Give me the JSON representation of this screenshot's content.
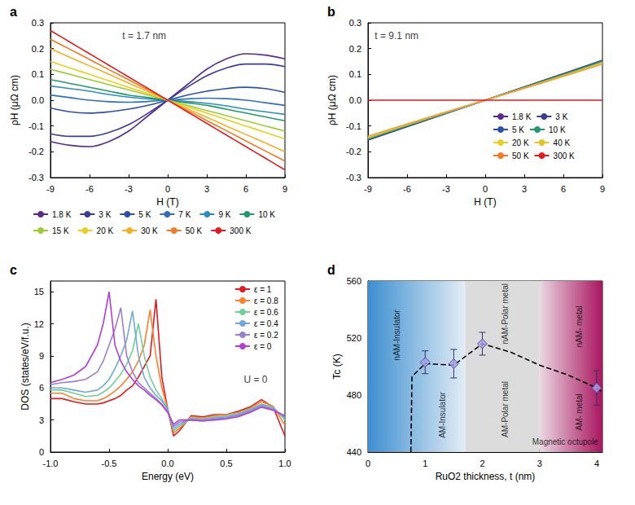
{
  "chart_data": [
    {
      "type": "line",
      "panel_label": "a",
      "xlabel": "H (T)",
      "ylabel": "ρH (μΩ cm)",
      "xlim": [
        -9,
        9
      ],
      "xticks": [
        -9,
        -6,
        -3,
        0,
        3,
        6,
        9
      ],
      "ylim": [
        -0.3,
        0.3
      ],
      "yticks": [
        -0.3,
        -0.2,
        -0.1,
        {
          "value": 0,
          "label": "0.0"
        },
        0.1,
        0.2,
        0.3
      ],
      "grid": false,
      "legend": "bottom",
      "marker": "none",
      "annotations": [
        {
          "text": "t = 1.7 nm",
          "x": -1.8,
          "y": 0.25
        }
      ],
      "x": [
        -9,
        -7.5,
        -6,
        -4.5,
        -3,
        -1.5,
        0,
        1.5,
        3,
        4.5,
        6,
        7.5,
        9
      ],
      "series": [
        {
          "name": "1.8 K",
          "color": "#5a2a8c",
          "values": [
            -0.16,
            -0.175,
            -0.18,
            -0.16,
            -0.12,
            -0.06,
            0,
            0.06,
            0.12,
            0.16,
            0.18,
            0.175,
            0.16
          ]
        },
        {
          "name": "3 K",
          "color": "#3b3b9a",
          "values": [
            -0.13,
            -0.14,
            -0.14,
            -0.125,
            -0.095,
            -0.05,
            0,
            0.05,
            0.095,
            0.125,
            0.14,
            0.14,
            0.13
          ]
        },
        {
          "name": "5 K",
          "color": "#2c4fa8",
          "values": [
            -0.03,
            -0.045,
            -0.05,
            -0.045,
            -0.035,
            -0.02,
            0,
            0.02,
            0.035,
            0.045,
            0.05,
            0.045,
            0.03
          ]
        },
        {
          "name": "7 K",
          "color": "#2f6fc0",
          "values": [
            0.02,
            0.01,
            0,
            -0.006,
            -0.008,
            -0.005,
            0,
            0.005,
            0.008,
            0.006,
            0,
            -0.01,
            -0.02
          ]
        },
        {
          "name": "9 K",
          "color": "#2a8fbf",
          "values": [
            0.055,
            0.045,
            0.035,
            0.022,
            0.012,
            0.005,
            0,
            -0.005,
            -0.012,
            -0.022,
            -0.035,
            -0.045,
            -0.055
          ]
        },
        {
          "name": "10 K",
          "color": "#1e9a6a",
          "values": [
            0.08,
            0.065,
            0.05,
            0.035,
            0.02,
            0.01,
            0,
            -0.01,
            -0.02,
            -0.035,
            -0.05,
            -0.065,
            -0.08
          ]
        },
        {
          "name": "15 K",
          "color": "#9acd32",
          "values": [
            0.12,
            0.1,
            0.08,
            0.06,
            0.04,
            0.02,
            0,
            -0.02,
            -0.04,
            -0.06,
            -0.08,
            -0.1,
            -0.12
          ]
        },
        {
          "name": "20 K",
          "color": "#e8d020",
          "values": [
            0.15,
            0.125,
            0.1,
            0.075,
            0.05,
            0.025,
            0,
            -0.025,
            -0.05,
            -0.075,
            -0.1,
            -0.125,
            -0.15
          ]
        },
        {
          "name": "30 K",
          "color": "#f5b021",
          "values": [
            0.2,
            0.166,
            0.133,
            0.1,
            0.066,
            0.033,
            0,
            -0.033,
            -0.066,
            -0.1,
            -0.133,
            -0.166,
            -0.2
          ]
        },
        {
          "name": "50 K",
          "color": "#f27a25",
          "values": [
            0.236,
            0.197,
            0.158,
            0.118,
            0.079,
            0.039,
            0,
            -0.039,
            -0.079,
            -0.118,
            -0.158,
            -0.197,
            -0.236
          ]
        },
        {
          "name": "300 K",
          "color": "#e41a1c",
          "values": [
            0.27,
            0.225,
            0.18,
            0.135,
            0.09,
            0.045,
            0,
            -0.045,
            -0.09,
            -0.135,
            -0.18,
            -0.225,
            -0.27
          ]
        }
      ]
    },
    {
      "type": "line",
      "panel_label": "b",
      "xlabel": "H (T)",
      "ylabel": "ρH (μΩ cm)",
      "xlim": [
        -9,
        9
      ],
      "xticks": [
        -9,
        -6,
        -3,
        0,
        3,
        6,
        9
      ],
      "ylim": [
        -0.3,
        0.3
      ],
      "yticks": [
        -0.3,
        -0.2,
        -0.1,
        {
          "value": 0,
          "label": "0.0"
        },
        0.1,
        0.2,
        0.3
      ],
      "grid": false,
      "legend": "lower right",
      "marker": "none",
      "annotations": [
        {
          "text": "t = 9.1 nm",
          "x": -6.8,
          "y": 0.25
        }
      ],
      "x": [
        -9,
        -4.5,
        0,
        4.5,
        9
      ],
      "series": [
        {
          "name": "1.8 K",
          "color": "#4b2a8a",
          "values": [
            -0.155,
            -0.077,
            0,
            0.077,
            0.155
          ]
        },
        {
          "name": "3 K",
          "color": "#1f3f8f",
          "values": [
            -0.153,
            -0.076,
            0,
            0.076,
            0.153
          ]
        },
        {
          "name": "5 K",
          "color": "#2f5fb3",
          "values": [
            -0.152,
            -0.075,
            0,
            0.075,
            0.152
          ]
        },
        {
          "name": "10 K",
          "color": "#1f8f8f",
          "values": [
            -0.15,
            -0.074,
            0,
            0.074,
            0.15
          ]
        },
        {
          "name": "20 K",
          "color": "#4caf50",
          "values": [
            -0.148,
            -0.073,
            0,
            0.073,
            0.148
          ]
        },
        {
          "name": "40 K",
          "color": "#e6c229",
          "values": [
            -0.145,
            -0.071,
            0,
            0.071,
            0.145
          ]
        },
        {
          "name": "50 K",
          "color": "#f39c34",
          "values": [
            -0.14,
            -0.069,
            0,
            0.069,
            0.14
          ]
        },
        {
          "name": "300 K",
          "color": "#e41a1c",
          "values": [
            0,
            0,
            0,
            0,
            0
          ]
        }
      ]
    },
    {
      "type": "line",
      "panel_label": "c",
      "xlabel": "Energy (eV)",
      "ylabel": "DOS (states/eV/f.u.)",
      "xlim": [
        -1,
        1
      ],
      "xticks": [
        {
          "value": -1,
          "label": "-1.0"
        },
        -0.5,
        {
          "value": 0,
          "label": "0.0"
        },
        0.5,
        {
          "value": 1,
          "label": "1.0"
        }
      ],
      "ylim": [
        0,
        16
      ],
      "yticks": [
        0,
        3,
        6,
        9,
        12,
        15
      ],
      "grid": false,
      "legend": "upper right",
      "marker": "none",
      "annotations": [
        {
          "text": "U = 0",
          "x": 0.75,
          "y": 6.8
        }
      ],
      "x": [
        -1,
        -0.9,
        -0.8,
        -0.7,
        -0.6,
        -0.55,
        -0.5,
        -0.45,
        -0.4,
        -0.35,
        -0.3,
        -0.25,
        -0.2,
        -0.15,
        -0.1,
        -0.05,
        0,
        0.05,
        0.1,
        0.2,
        0.3,
        0.4,
        0.5,
        0.6,
        0.7,
        0.8,
        0.9,
        1
      ],
      "series": [
        {
          "name": "ε = 1",
          "color": "#e31a1c",
          "values": [
            5,
            5,
            4.7,
            4.5,
            4.5,
            4.6,
            4.8,
            5,
            5.3,
            5.8,
            6.2,
            7,
            8,
            9,
            14.3,
            7,
            4,
            1.5,
            2,
            3.4,
            3.3,
            3.5,
            3.5,
            3.8,
            4.2,
            4.9,
            4.2,
            1.5
          ]
        },
        {
          "name": "ε = 0.8",
          "color": "#ff7f2a",
          "values": [
            5.5,
            5.5,
            5,
            4.8,
            4.8,
            5,
            5.3,
            5.7,
            6.2,
            6.8,
            7.5,
            8.5,
            10,
            13.3,
            9,
            6,
            4,
            1.8,
            2.2,
            3.3,
            3.2,
            3.4,
            3.5,
            3.7,
            4.1,
            4.7,
            4.3,
            2.5
          ]
        },
        {
          "name": "ε = 0.6",
          "color": "#6fd09a",
          "values": [
            5.8,
            5.8,
            5.5,
            5.2,
            5.3,
            5.6,
            6,
            6.6,
            7.3,
            8.2,
            9.5,
            12,
            9,
            7,
            5.8,
            5,
            4,
            2,
            2.4,
            3.2,
            3.1,
            3.3,
            3.4,
            3.6,
            4,
            4.5,
            4.2,
            3
          ]
        },
        {
          "name": "ε = 0.4",
          "color": "#6fa8dc",
          "values": [
            6,
            6,
            5.8,
            5.6,
            5.8,
            6.2,
            6.8,
            7.8,
            9,
            10.5,
            13.2,
            9,
            7,
            6,
            5.3,
            4.8,
            4,
            2.2,
            2.6,
            3.1,
            3,
            3.2,
            3.3,
            3.5,
            3.9,
            4.4,
            4.1,
            3.2
          ]
        },
        {
          "name": "ε = 0.2",
          "color": "#9a7fd1",
          "values": [
            6.3,
            6.5,
            6.6,
            6.8,
            7.5,
            8.5,
            10,
            11.5,
            13.5,
            9,
            7.5,
            6.5,
            6,
            5.5,
            5,
            4.5,
            3.8,
            2.4,
            2.8,
            3,
            3,
            3.1,
            3.2,
            3.4,
            3.8,
            4.3,
            4,
            3.3
          ]
        },
        {
          "name": "ε = 0",
          "color": "#b13fd6",
          "values": [
            6.5,
            6.8,
            7.2,
            8,
            10,
            12,
            15,
            10,
            8.5,
            7.5,
            6.8,
            6.2,
            5.8,
            5.3,
            4.9,
            4.4,
            3.7,
            2.6,
            3,
            3,
            2.9,
            3,
            3.1,
            3.3,
            3.7,
            4.2,
            3.9,
            3.4
          ]
        }
      ]
    },
    {
      "type": "scatter",
      "panel_label": "d",
      "xlabel": "RuO2 thickness, t (nm)",
      "ylabel": "Tc (K)",
      "xlim": [
        0,
        4.1
      ],
      "xticks": [
        0,
        1,
        2,
        3,
        4
      ],
      "ylim": [
        440,
        560
      ],
      "yticks": [
        440,
        480,
        520,
        560
      ],
      "grid": false,
      "series": [
        {
          "type": "line",
          "line_style": "dashed",
          "marker": "none",
          "color": "#000000",
          "x": [
            0.75,
            0.77,
            1,
            1.5,
            2,
            2.5,
            3,
            3.5,
            4,
            4.1
          ],
          "values": [
            440,
            493,
            502,
            501,
            516,
            510,
            501,
            494,
            485,
            482
          ]
        },
        {
          "type": "scatter",
          "marker": "diamond",
          "color": "#a8a3ec",
          "x": [
            1,
            1.5,
            2,
            4
          ],
          "values": [
            503,
            502,
            516,
            485
          ],
          "errors": [
            8,
            10,
            8,
            12
          ]
        }
      ],
      "regions": [
        {
          "x": [
            0,
            1.7
          ],
          "colors": [
            "#3d8fd1",
            "#e3edf5"
          ]
        },
        {
          "x": [
            1.7,
            3
          ],
          "colors": [
            "#dcdcdc",
            "#dcdcdc"
          ]
        },
        {
          "x": [
            3,
            4.1
          ],
          "colors": [
            "#ead8e2",
            "#a8155e"
          ]
        }
      ],
      "phase_labels": [
        {
          "text": "nAM-Insulator",
          "x": 0.5,
          "y": 522
        },
        {
          "text": "AM-Insulator",
          "x": 1.3,
          "y": 466
        },
        {
          "text": "nAM-Polar metal",
          "x": 2.4,
          "y": 537
        },
        {
          "text": "AM-Polar metal",
          "x": 2.4,
          "y": 470
        },
        {
          "text": "nAM- metal",
          "x": 3.7,
          "y": 528
        },
        {
          "text": "AM- metal",
          "x": 3.7,
          "y": 468
        }
      ],
      "annotations": [
        {
          "text": "Magnetic octupole",
          "x": 3.45,
          "y": 447
        }
      ]
    }
  ]
}
